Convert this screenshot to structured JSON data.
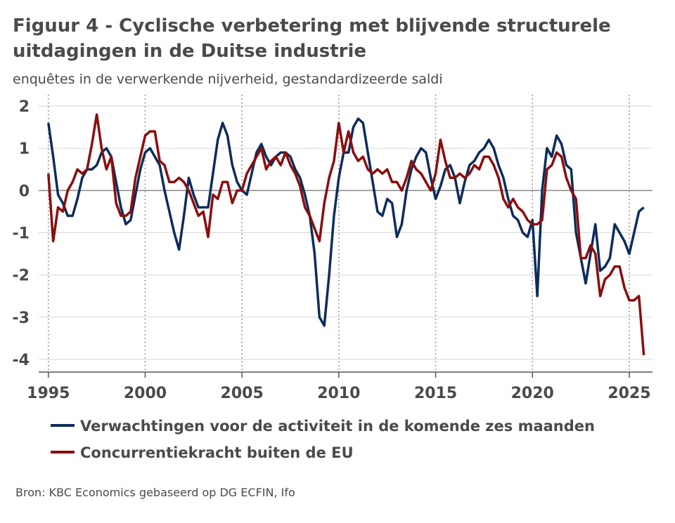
{
  "chart_data": {
    "type": "line",
    "title": "Figuur 4 - Cyclische verbetering met blijvende structurele uitdagingen in de Duitse industrie",
    "subtitle": "enquêtes in de verwerkende nijverheid, gestandardizeerde saldi",
    "source": "Bron: KBC Economics gebaseerd op DG ECFIN, Ifo",
    "x": [
      1995,
      1995.25,
      1995.5,
      1995.75,
      1996,
      1996.25,
      1996.5,
      1996.75,
      1997,
      1997.25,
      1997.5,
      1997.75,
      1998,
      1998.25,
      1998.5,
      1998.75,
      1999,
      1999.25,
      1999.5,
      1999.75,
      2000,
      2000.25,
      2000.5,
      2000.75,
      2001,
      2001.25,
      2001.5,
      2001.75,
      2002,
      2002.25,
      2002.5,
      2002.75,
      2003,
      2003.25,
      2003.5,
      2003.75,
      2004,
      2004.25,
      2004.5,
      2004.75,
      2005,
      2005.25,
      2005.5,
      2005.75,
      2006,
      2006.25,
      2006.5,
      2006.75,
      2007,
      2007.25,
      2007.5,
      2007.75,
      2008,
      2008.25,
      2008.5,
      2008.75,
      2009,
      2009.25,
      2009.5,
      2009.75,
      2010,
      2010.25,
      2010.5,
      2010.75,
      2011,
      2011.25,
      2011.5,
      2011.75,
      2012,
      2012.25,
      2012.5,
      2012.75,
      2013,
      2013.25,
      2013.5,
      2013.75,
      2014,
      2014.25,
      2014.5,
      2014.75,
      2015,
      2015.25,
      2015.5,
      2015.75,
      2016,
      2016.25,
      2016.5,
      2016.75,
      2017,
      2017.25,
      2017.5,
      2017.75,
      2018,
      2018.25,
      2018.5,
      2018.75,
      2019,
      2019.25,
      2019.5,
      2019.75,
      2020,
      2020.25,
      2020.5,
      2020.75,
      2021,
      2021.25,
      2021.5,
      2021.75,
      2022,
      2022.25,
      2022.5,
      2022.75,
      2023,
      2023.25,
      2023.5,
      2023.75,
      2024,
      2024.25,
      2024.5,
      2024.75,
      2025,
      2025.25,
      2025.5,
      2025.75
    ],
    "series": [
      {
        "name": "Verwachtingen voor de activiteit in de komende zes maanden",
        "color": "#0d2c5c",
        "values": [
          1.6,
          0.8,
          -0.1,
          -0.3,
          -0.6,
          -0.6,
          -0.2,
          0.3,
          0.5,
          0.5,
          0.6,
          0.9,
          1.0,
          0.8,
          0.2,
          -0.4,
          -0.8,
          -0.7,
          -0.1,
          0.5,
          0.9,
          1.0,
          0.8,
          0.6,
          0.0,
          -0.5,
          -1.0,
          -1.4,
          -0.6,
          0.3,
          -0.1,
          -0.4,
          -0.4,
          -0.4,
          0.4,
          1.2,
          1.6,
          1.3,
          0.6,
          0.2,
          0.0,
          -0.1,
          0.4,
          0.9,
          1.1,
          0.8,
          0.6,
          0.8,
          0.9,
          0.9,
          0.8,
          0.5,
          0.3,
          -0.1,
          -0.6,
          -1.5,
          -3.0,
          -3.2,
          -2.0,
          -0.6,
          0.3,
          0.9,
          0.9,
          1.5,
          1.7,
          1.6,
          0.9,
          0.2,
          -0.5,
          -0.6,
          -0.2,
          -0.3,
          -1.1,
          -0.8,
          0.0,
          0.5,
          0.8,
          1.0,
          0.9,
          0.3,
          -0.2,
          0.1,
          0.5,
          0.6,
          0.3,
          -0.3,
          0.2,
          0.6,
          0.7,
          0.9,
          1.0,
          1.2,
          1.0,
          0.6,
          0.3,
          -0.2,
          -0.6,
          -0.7,
          -1.0,
          -1.1,
          -0.7,
          -2.5,
          0.0,
          1.0,
          0.8,
          1.3,
          1.1,
          0.6,
          0.5,
          -1.0,
          -1.6,
          -2.2,
          -1.5,
          -0.8,
          -1.9,
          -1.8,
          -1.6,
          -0.8,
          -1.0,
          -1.2,
          -1.5,
          -1.0,
          -0.5,
          -0.4
        ]
      },
      {
        "name": "Concurrentiekracht buiten de EU",
        "color": "#8b0d0d",
        "values": [
          0.4,
          -1.2,
          -0.4,
          -0.5,
          0.0,
          0.2,
          0.5,
          0.4,
          0.5,
          1.1,
          1.8,
          1.0,
          0.5,
          0.8,
          -0.3,
          -0.6,
          -0.6,
          -0.5,
          0.3,
          0.8,
          1.3,
          1.4,
          1.4,
          0.7,
          0.6,
          0.2,
          0.2,
          0.3,
          0.2,
          0.0,
          -0.3,
          -0.6,
          -0.5,
          -1.1,
          -0.1,
          -0.2,
          0.2,
          0.2,
          -0.3,
          0.0,
          0.0,
          0.4,
          0.6,
          0.8,
          1.0,
          0.5,
          0.7,
          0.8,
          0.6,
          0.9,
          0.6,
          0.4,
          0.1,
          -0.4,
          -0.6,
          -0.9,
          -1.2,
          -0.3,
          0.3,
          0.7,
          1.6,
          0.9,
          1.4,
          0.9,
          0.7,
          0.8,
          0.5,
          0.4,
          0.5,
          0.4,
          0.5,
          0.2,
          0.2,
          0.0,
          0.3,
          0.7,
          0.5,
          0.4,
          0.2,
          0.0,
          0.4,
          1.2,
          0.7,
          0.3,
          0.3,
          0.4,
          0.3,
          0.4,
          0.6,
          0.5,
          0.8,
          0.8,
          0.6,
          0.3,
          -0.2,
          -0.4,
          -0.2,
          -0.4,
          -0.5,
          -0.7,
          -0.8,
          -0.8,
          -0.7,
          0.5,
          0.6,
          0.9,
          0.8,
          0.3,
          0.0,
          -0.2,
          -1.6,
          -1.6,
          -1.3,
          -1.5,
          -2.5,
          -2.1,
          -2.0,
          -1.8,
          -1.8,
          -2.3,
          -2.6,
          -2.6,
          -2.5,
          -3.9
        ]
      }
    ],
    "xlim": [
      1994.5,
      2026.2
    ],
    "ylim": [
      -4.3,
      2.1
    ],
    "xticks": [
      1995,
      2000,
      2005,
      2010,
      2015,
      2020,
      2025
    ],
    "yticks": [
      -4,
      -3,
      -2,
      -1,
      0,
      1,
      2
    ],
    "grid": true
  }
}
